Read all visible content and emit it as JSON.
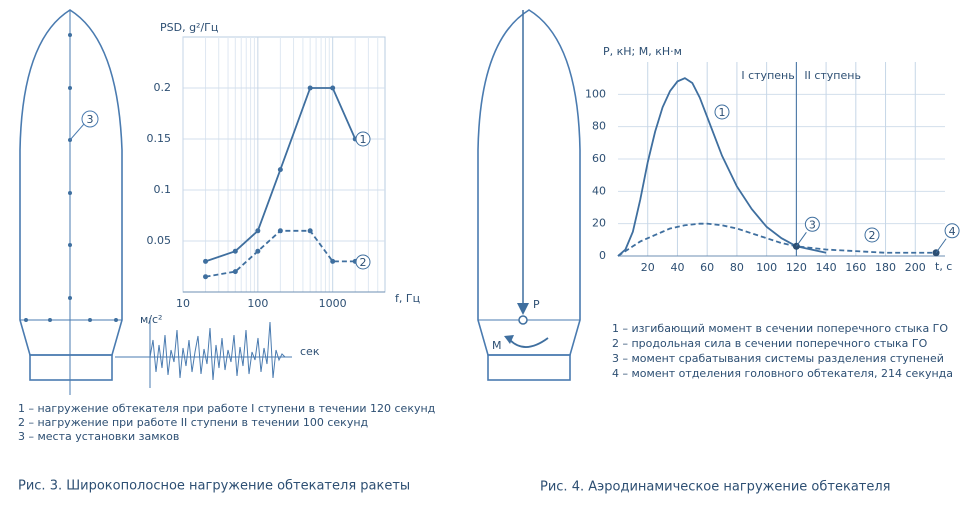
{
  "chart_data": [
    {
      "type": "line",
      "log_x": true,
      "grid": true,
      "ylabel": "PSD, g²/Гц",
      "xlabel": "f, Гц",
      "xlim": [
        10,
        5000
      ],
      "ylim": [
        0,
        0.25
      ],
      "xticks": [
        10,
        100,
        1000
      ],
      "yticks": [
        0.05,
        0.1,
        0.15,
        0.2
      ],
      "x": [
        20,
        50,
        100,
        200,
        500,
        1000,
        2000
      ],
      "series": [
        {
          "name": "1",
          "color": "#3f6f9f",
          "dash": false,
          "markers": true,
          "values": [
            0.03,
            0.04,
            0.06,
            0.12,
            0.2,
            0.2,
            0.15
          ]
        },
        {
          "name": "2",
          "color": "#3f6f9f",
          "dash": true,
          "markers": true,
          "values": [
            0.015,
            0.02,
            0.04,
            0.06,
            0.06,
            0.03,
            0.03
          ]
        }
      ]
    },
    {
      "type": "line",
      "log_x": false,
      "grid": true,
      "ylabel": "P, кН; M, кН·м",
      "xlabel": "t, с",
      "xlim": [
        0,
        220
      ],
      "ylim": [
        0,
        120
      ],
      "xticks": [
        20,
        40,
        60,
        80,
        100,
        120,
        140,
        160,
        180,
        200
      ],
      "yticks": [
        0,
        20,
        40,
        60,
        80,
        100
      ],
      "stages": [
        "I ступень",
        "II ступень"
      ],
      "stage_boundary": 120,
      "x": [
        0,
        5,
        10,
        15,
        20,
        25,
        30,
        35,
        40,
        45,
        50,
        55,
        60,
        70,
        80,
        90,
        100,
        110,
        120,
        140,
        160,
        180,
        200,
        214
      ],
      "series": [
        {
          "name": "1",
          "color": "#3f6f9f",
          "dash": false,
          "markers": false,
          "values": [
            0,
            4,
            15,
            35,
            58,
            77,
            92,
            102,
            108,
            110,
            107,
            98,
            86,
            62,
            43,
            29,
            18,
            11,
            6,
            2,
            null,
            null,
            null,
            null
          ]
        },
        {
          "name": "2",
          "color": "#3f6f9f",
          "dash": true,
          "markers": false,
          "values": [
            0,
            3,
            6,
            9,
            11,
            13,
            15,
            17,
            18,
            19,
            19.5,
            20,
            20,
            19,
            17,
            14,
            11,
            8,
            6,
            4,
            3,
            2,
            2,
            2
          ]
        }
      ],
      "events": [
        {
          "label": "3",
          "x": 120,
          "y": 6
        },
        {
          "label": "4",
          "x": 214,
          "y": 2
        }
      ]
    }
  ],
  "figure_left": {
    "lock_label": "3",
    "signal_y_label": "м/с²",
    "signal_x_label": "сек",
    "legend": [
      "1 – нагружение обтекателя при работе I ступени в течении 120 секунд",
      "2 – нагружение при работе II ступени в течении 100 секунд",
      "3 – места установки замков"
    ],
    "caption": "Рис. 3. Широкополосное нагружение обтекателя ракеты"
  },
  "figure_right": {
    "force_label": "P",
    "moment_label": "M",
    "legend": [
      "1 – изгибающий момент в сечении поперечного стыка ГО",
      "2 – продольная сила в сечении поперечного стыка ГО",
      "3 – момент срабатывания системы разделения ступеней",
      "4 – момент отделения головного обтекателя, 214 секунда"
    ],
    "caption": "Рис. 4. Аэродинамическое нагружение обтекателя"
  }
}
